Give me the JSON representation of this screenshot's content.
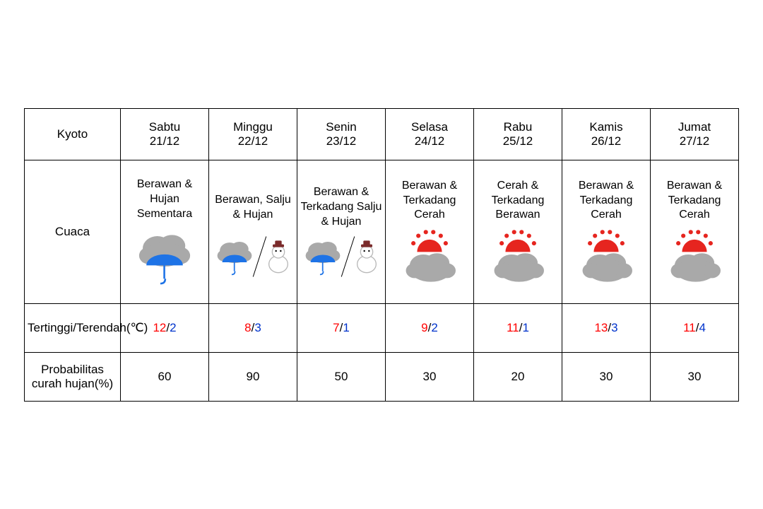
{
  "location": "Kyoto",
  "row_labels": {
    "weather": "Cuaca",
    "temp": "Tertinggi/Terendah(℃)",
    "precip": "Probabilitas curah hujan(%)"
  },
  "colors": {
    "high_temp": "#ff0000",
    "low_temp": "#0033cc",
    "slash": "#000000",
    "border": "#000000",
    "cloud": "#a9a9a9",
    "umbrella": "#1e73e6",
    "sun": "#e6251f",
    "snow_body": "#ffffff",
    "snow_outline": "#b8b8b8",
    "snow_hat": "#7b2b2b"
  },
  "days": [
    {
      "name": "Sabtu",
      "date": "21/12",
      "condition": "Berawan & Hujan Sementara",
      "icon": "cloud-rain",
      "high": "12",
      "low": "2",
      "precip": "60"
    },
    {
      "name": "Minggu",
      "date": "22/12",
      "condition": "Berawan, Salju & Hujan",
      "icon": "cloud-rain-snow",
      "high": "8",
      "low": "3",
      "precip": "90"
    },
    {
      "name": "Senin",
      "date": "23/12",
      "condition": "Berawan & Terkadang Salju & Hujan",
      "icon": "cloud-rain-snow",
      "high": "7",
      "low": "1",
      "precip": "50"
    },
    {
      "name": "Selasa",
      "date": "24/12",
      "condition": "Berawan & Terkadang Cerah",
      "icon": "sun-cloud",
      "high": "9",
      "low": "2",
      "precip": "30"
    },
    {
      "name": "Rabu",
      "date": "25/12",
      "condition": "Cerah & Terkadang Berawan",
      "icon": "sun-cloud",
      "high": "11",
      "low": "1",
      "precip": "20"
    },
    {
      "name": "Kamis",
      "date": "26/12",
      "condition": "Berawan & Terkadang Cerah",
      "icon": "sun-cloud",
      "high": "13",
      "low": "3",
      "precip": "30"
    },
    {
      "name": "Jumat",
      "date": "27/12",
      "condition": "Berawan & Terkadang Cerah",
      "icon": "sun-cloud",
      "high": "11",
      "low": "4",
      "precip": "30"
    }
  ]
}
